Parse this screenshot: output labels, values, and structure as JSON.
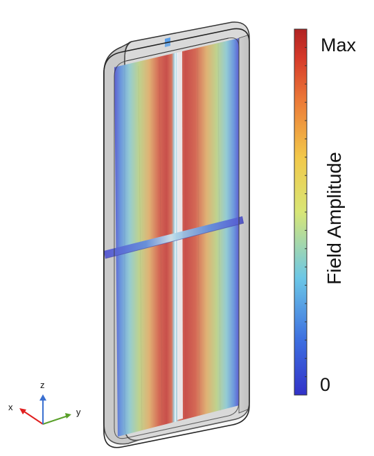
{
  "colorbar": {
    "title": "Field Amplitude",
    "max_label": "Max",
    "min_label": "0",
    "colormap": [
      "#3b3bd0",
      "#4a8ee6",
      "#7fd0e0",
      "#e8e86a",
      "#f0a040",
      "#d23a2a",
      "#b02020"
    ]
  },
  "axes": {
    "x": "x",
    "y": "y",
    "z": "z"
  },
  "axis_colors": {
    "x": "#e02020",
    "y": "#5aa02a",
    "z": "#3a6fd0"
  }
}
